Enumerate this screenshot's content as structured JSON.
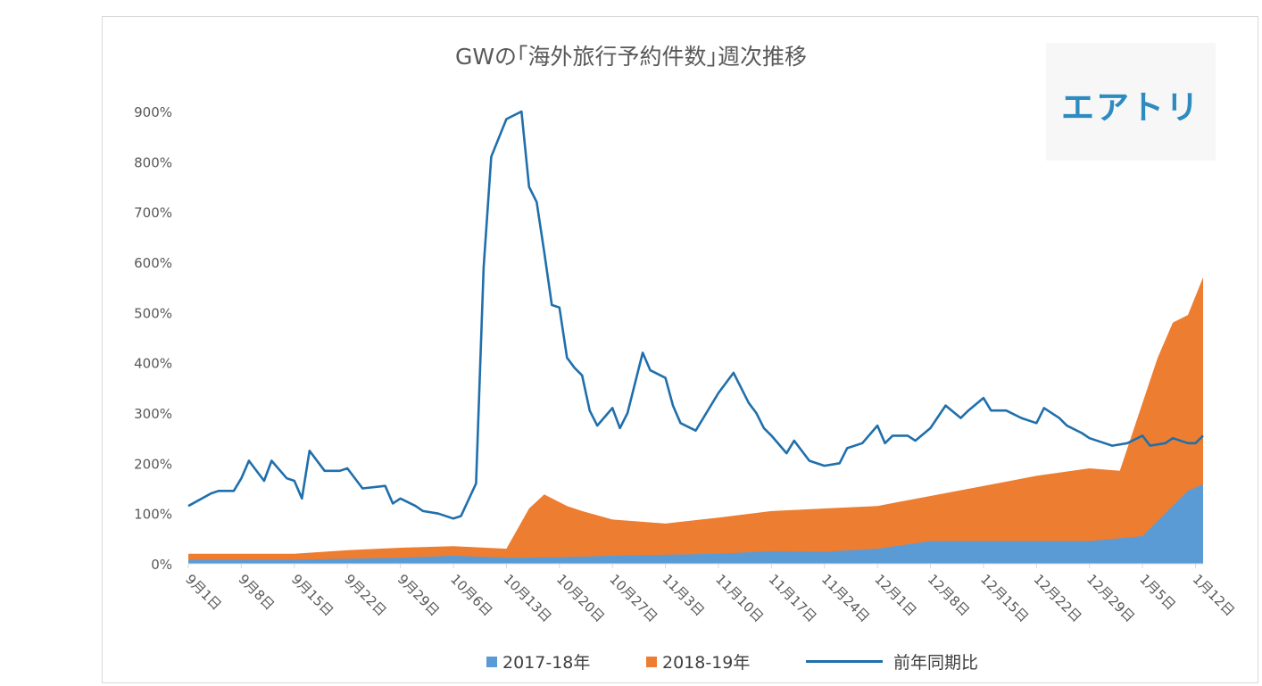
{
  "chart_data": {
    "type": "area",
    "title": "GWの｢海外旅行予約件数｣週次推移",
    "logo_text": "エアトリ",
    "y_ticks": [
      "0%",
      "100%",
      "200%",
      "300%",
      "400%",
      "500%",
      "600%",
      "700%",
      "800%",
      "900%"
    ],
    "ylim": [
      0,
      900
    ],
    "x_tick_labels": [
      "9月1日",
      "9月8日",
      "9月15日",
      "9月22日",
      "9月29日",
      "10月6日",
      "10月13日",
      "10月20日",
      "10月27日",
      "11月3日",
      "11月10日",
      "11月17日",
      "11月24日",
      "12月1日",
      "12月8日",
      "12月15日",
      "12月22日",
      "12月29日",
      "1月5日",
      "1月12日"
    ],
    "x_range_days": [
      0,
      134
    ],
    "series": [
      {
        "name": "2017-18年",
        "kind": "area",
        "color": "#5b9bd5",
        "x": [
          0,
          7,
          14,
          21,
          28,
          35,
          42,
          49,
          56,
          63,
          70,
          77,
          84,
          91,
          98,
          105,
          112,
          119,
          126,
          132,
          134
        ],
        "values": [
          8,
          8,
          8,
          10,
          12,
          16,
          12,
          13,
          16,
          18,
          20,
          25,
          24,
          30,
          45,
          45,
          45,
          45,
          55,
          145,
          158
        ]
      },
      {
        "name": "2018-19年",
        "kind": "area",
        "color": "#ed7d31",
        "x": [
          0,
          7,
          14,
          21,
          28,
          35,
          42,
          45,
          47,
          50,
          52,
          56,
          63,
          70,
          77,
          84,
          91,
          98,
          105,
          112,
          119,
          123,
          126,
          128,
          130,
          132,
          134
        ],
        "values": [
          20,
          20,
          20,
          27,
          32,
          35,
          30,
          110,
          138,
          115,
          105,
          88,
          80,
          92,
          105,
          110,
          115,
          135,
          155,
          175,
          190,
          185,
          320,
          410,
          480,
          495,
          570
        ]
      },
      {
        "name": "前年同期比",
        "kind": "line",
        "color": "#1f6fac",
        "x": [
          0,
          3,
          4,
          6,
          7,
          8,
          10,
          11,
          13,
          14,
          15,
          16,
          18,
          20,
          21,
          23,
          26,
          27,
          28,
          30,
          31,
          33,
          35,
          36,
          38,
          39,
          40,
          42,
          44,
          45,
          46,
          47,
          48,
          49,
          50,
          51,
          52,
          53,
          54,
          56,
          57,
          58,
          60,
          61,
          63,
          64,
          65,
          67,
          70,
          72,
          73,
          74,
          75,
          76,
          77,
          79,
          80,
          82,
          84,
          86,
          87,
          89,
          91,
          92,
          93,
          95,
          96,
          98,
          100,
          102,
          103,
          105,
          106,
          108,
          110,
          112,
          113,
          115,
          116,
          118,
          119,
          121,
          122,
          124,
          126,
          127,
          129,
          130,
          132,
          133,
          134
        ],
        "values": [
          115,
          140,
          145,
          145,
          170,
          205,
          165,
          205,
          170,
          165,
          130,
          225,
          185,
          185,
          190,
          150,
          155,
          120,
          130,
          115,
          105,
          100,
          90,
          95,
          160,
          590,
          810,
          885,
          900,
          750,
          720,
          620,
          515,
          510,
          410,
          390,
          375,
          305,
          275,
          310,
          270,
          300,
          420,
          385,
          370,
          315,
          280,
          265,
          340,
          380,
          350,
          320,
          300,
          270,
          255,
          220,
          245,
          205,
          195,
          200,
          230,
          240,
          275,
          240,
          255,
          255,
          245,
          270,
          315,
          290,
          305,
          330,
          305,
          305,
          290,
          280,
          310,
          290,
          275,
          260,
          250,
          240,
          235,
          240,
          255,
          235,
          240,
          250,
          240,
          240,
          255
        ]
      }
    ],
    "legend_position": "bottom",
    "grid": false
  }
}
